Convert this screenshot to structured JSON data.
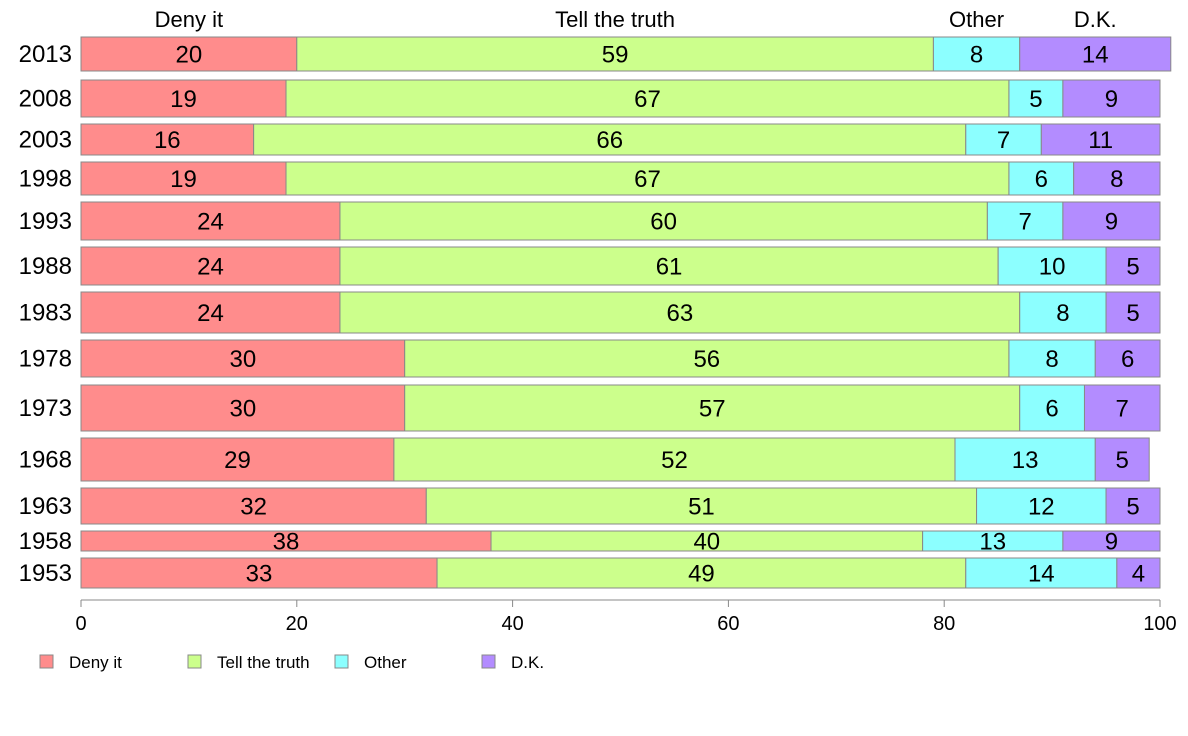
{
  "chart_data": {
    "type": "bar",
    "orientation": "horizontal",
    "stacked": true,
    "categories": [
      "2013",
      "2008",
      "2003",
      "1998",
      "1993",
      "1988",
      "1983",
      "1978",
      "1973",
      "1968",
      "1963",
      "1958",
      "1953"
    ],
    "series": [
      {
        "name": "Deny it",
        "color": "#FF8C8C",
        "values": [
          20,
          19,
          16,
          19,
          24,
          24,
          24,
          30,
          30,
          29,
          32,
          38,
          33
        ]
      },
      {
        "name": "Tell the truth",
        "color": "#CCFF8C",
        "values": [
          59,
          67,
          66,
          67,
          60,
          61,
          63,
          56,
          57,
          52,
          51,
          40,
          49
        ]
      },
      {
        "name": "Other",
        "color": "#8CFFFF",
        "values": [
          8,
          5,
          7,
          6,
          7,
          10,
          8,
          8,
          6,
          13,
          12,
          13,
          14
        ]
      },
      {
        "name": "D.K.",
        "color": "#B38CFF",
        "values": [
          14,
          9,
          11,
          8,
          9,
          5,
          5,
          6,
          7,
          5,
          5,
          9,
          4
        ]
      }
    ],
    "column_headers": [
      "Deny it",
      "Tell the truth",
      "Other",
      "D.K."
    ],
    "xlim": [
      0,
      100
    ],
    "xticks": [
      0,
      20,
      40,
      60,
      80,
      100
    ],
    "grid": false,
    "legend": "bottom-left"
  }
}
